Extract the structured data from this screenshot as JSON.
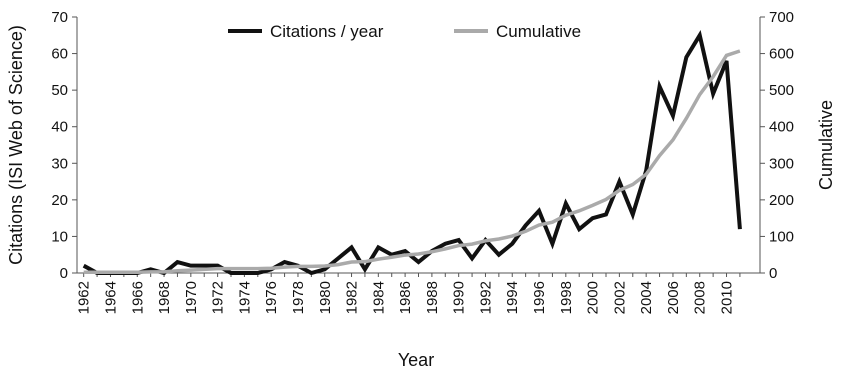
{
  "chart_data": {
    "type": "line",
    "title": "",
    "xlabel": "Year",
    "ylabel": "Citations (ISI Web of Science)",
    "y2label": "Cumulative",
    "ylim": [
      0,
      70
    ],
    "y2lim": [
      0,
      700
    ],
    "yticks": [
      0,
      10,
      20,
      30,
      40,
      50,
      60,
      70
    ],
    "y2ticks": [
      0,
      100,
      200,
      300,
      400,
      500,
      600,
      700
    ],
    "xticks": [
      "1962",
      "1964",
      "1966",
      "1968",
      "1970",
      "1972",
      "1974",
      "1976",
      "1978",
      "1980",
      "1982",
      "1984",
      "1986",
      "1988",
      "1990",
      "1992",
      "1994",
      "1996",
      "1998",
      "2000",
      "2002",
      "2004",
      "2006",
      "2008",
      "2010"
    ],
    "grid": false,
    "legend_position": "top",
    "x": [
      1962,
      1963,
      1964,
      1965,
      1966,
      1967,
      1968,
      1969,
      1970,
      1971,
      1972,
      1973,
      1974,
      1975,
      1976,
      1977,
      1978,
      1979,
      1980,
      1981,
      1982,
      1983,
      1984,
      1985,
      1986,
      1987,
      1988,
      1989,
      1990,
      1991,
      1992,
      1993,
      1994,
      1995,
      1996,
      1997,
      1998,
      1999,
      2000,
      2001,
      2002,
      2003,
      2004,
      2005,
      2006,
      2007,
      2008,
      2009,
      2010,
      2011
    ],
    "series": [
      {
        "name": "Citations / year",
        "axis": "left",
        "color": "#111111",
        "values": [
          2,
          0,
          0,
          0,
          0,
          1,
          0,
          3,
          2,
          2,
          2,
          0,
          0,
          0,
          1,
          3,
          2,
          0,
          1,
          4,
          7,
          1,
          7,
          5,
          6,
          3,
          6,
          8,
          9,
          4,
          9,
          5,
          8,
          13,
          17,
          8,
          19,
          12,
          15,
          16,
          25,
          16,
          28,
          51,
          43,
          59,
          65,
          49,
          58,
          12
        ]
      },
      {
        "name": "Cumulative",
        "axis": "right",
        "color": "#aaaaaa",
        "values": [
          2,
          2,
          2,
          2,
          2,
          3,
          3,
          6,
          8,
          10,
          12,
          12,
          12,
          12,
          13,
          16,
          18,
          18,
          19,
          23,
          30,
          31,
          38,
          43,
          49,
          52,
          58,
          66,
          75,
          79,
          88,
          93,
          101,
          114,
          131,
          139,
          158,
          170,
          185,
          201,
          226,
          242,
          270,
          321,
          364,
          423,
          488,
          537,
          595,
          607
        ]
      }
    ]
  },
  "legend": {
    "items": [
      {
        "label": "Citations / year",
        "color": "#111111"
      },
      {
        "label": "Cumulative",
        "color": "#aaaaaa"
      }
    ]
  }
}
